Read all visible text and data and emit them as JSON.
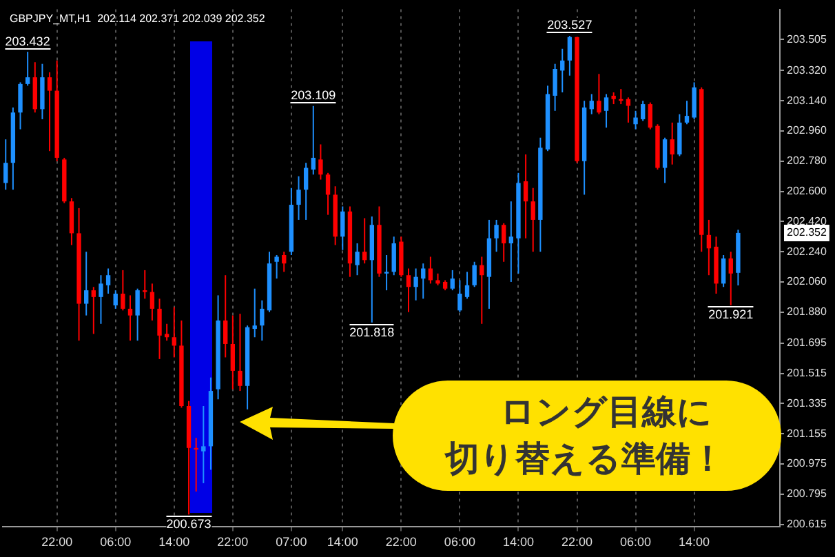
{
  "chart_data": {
    "type": "candlestick",
    "title": "GBPJPY_MT,H1  202.114 202.371 202.039 202.352",
    "categories": [
      null,
      null,
      null,
      null,
      null,
      null,
      null,
      "22:00",
      null,
      null,
      null,
      null,
      null,
      null,
      null,
      "06:00",
      null,
      null,
      null,
      null,
      null,
      null,
      null,
      "14:00",
      null,
      null,
      null,
      null,
      null,
      null,
      null,
      "22:00",
      null,
      null,
      null,
      null,
      null,
      null,
      null,
      "07:00",
      null,
      null,
      null,
      null,
      null,
      null,
      "14:00",
      null,
      null,
      null,
      null,
      null,
      null,
      null,
      "22:00",
      null,
      null,
      null,
      null,
      null,
      null,
      null,
      "06:00",
      null,
      null,
      null,
      null,
      null,
      null,
      null,
      "14:00",
      null,
      null,
      null,
      null,
      null,
      null,
      null,
      "22:00",
      null,
      null,
      null,
      null,
      null,
      null,
      null,
      "06:00",
      null,
      null,
      null,
      null,
      null,
      null,
      null,
      "14:00",
      null,
      null,
      null,
      null,
      null,
      null
    ],
    "ohlc": [
      [
        202.65,
        202.91,
        202.61,
        202.77
      ],
      [
        202.77,
        203.1,
        202.61,
        203.07
      ],
      [
        203.07,
        203.25,
        202.97,
        203.24
      ],
      [
        203.24,
        203.432,
        203.23,
        203.28
      ],
      [
        203.28,
        203.37,
        203.07,
        203.09
      ],
      [
        203.09,
        203.36,
        203.03,
        203.28
      ],
      [
        203.28,
        203.31,
        202.84,
        203.2
      ],
      [
        203.2,
        203.38,
        202.78,
        202.8
      ],
      [
        202.79,
        202.8,
        202.53,
        202.54
      ],
      [
        202.54,
        202.56,
        202.28,
        202.35
      ],
      [
        202.35,
        202.5,
        201.71,
        201.93
      ],
      [
        201.93,
        202.24,
        201.86,
        202.01
      ],
      [
        202.01,
        202.03,
        201.75,
        201.97
      ],
      [
        201.97,
        202.1,
        201.81,
        202.05
      ],
      [
        202.04,
        202.14,
        201.99,
        202.1
      ],
      [
        201.92,
        202.01,
        201.9,
        201.99
      ],
      [
        201.99,
        202.13,
        201.89,
        201.9
      ],
      [
        201.9,
        201.98,
        201.71,
        201.86
      ],
      [
        201.86,
        202.02,
        201.71,
        202.01
      ],
      [
        202.01,
        202.13,
        201.96,
        202.0
      ],
      [
        202.0,
        202.05,
        201.83,
        201.9
      ],
      [
        201.9,
        201.96,
        201.6,
        201.74
      ],
      [
        201.75,
        201.81,
        201.71,
        201.73
      ],
      [
        201.73,
        201.91,
        201.61,
        201.68
      ],
      [
        201.68,
        201.83,
        201.31,
        201.32
      ],
      [
        201.32,
        201.35,
        200.673,
        201.07
      ],
      [
        201.07,
        201.13,
        200.81,
        201.06
      ],
      [
        201.05,
        201.32,
        200.86,
        201.08
      ],
      [
        201.08,
        201.49,
        200.94,
        201.41
      ],
      [
        201.42,
        201.98,
        201.36,
        201.83
      ],
      [
        201.83,
        202.1,
        201.61,
        201.69
      ],
      [
        201.69,
        201.86,
        201.42,
        201.53
      ],
      [
        201.53,
        201.87,
        201.41,
        201.44
      ],
      [
        201.44,
        201.8,
        201.3,
        201.79
      ],
      [
        201.78,
        202.02,
        201.73,
        201.8
      ],
      [
        201.8,
        201.95,
        201.71,
        201.9
      ],
      [
        201.89,
        202.24,
        201.88,
        202.17
      ],
      [
        202.18,
        202.22,
        202.08,
        202.21
      ],
      [
        202.22,
        202.24,
        202.12,
        202.17
      ],
      [
        202.24,
        202.62,
        202.22,
        202.52
      ],
      [
        202.52,
        202.69,
        202.43,
        202.61
      ],
      [
        202.61,
        202.77,
        202.43,
        202.74
      ],
      [
        202.73,
        203.109,
        202.7,
        202.8
      ],
      [
        202.79,
        202.88,
        202.67,
        202.7
      ],
      [
        202.7,
        202.71,
        202.46,
        202.58
      ],
      [
        202.58,
        202.63,
        202.28,
        202.33
      ],
      [
        202.33,
        202.51,
        202.25,
        202.48
      ],
      [
        202.48,
        202.51,
        202.09,
        202.17
      ],
      [
        202.16,
        202.29,
        202.1,
        202.24
      ],
      [
        202.24,
        202.44,
        202.17,
        202.19
      ],
      [
        202.19,
        202.45,
        201.818,
        202.4
      ],
      [
        202.4,
        202.51,
        202.09,
        202.11
      ],
      [
        202.11,
        202.22,
        202.01,
        202.12
      ],
      [
        202.12,
        202.33,
        202.1,
        202.29
      ],
      [
        202.3,
        202.33,
        202.09,
        202.1
      ],
      [
        202.1,
        202.14,
        201.88,
        202.03
      ],
      [
        202.03,
        202.14,
        201.95,
        202.09
      ],
      [
        202.08,
        202.17,
        201.96,
        202.14
      ],
      [
        202.14,
        202.21,
        202.05,
        202.07
      ],
      [
        202.07,
        202.11,
        202.04,
        202.05
      ],
      [
        202.06,
        202.07,
        202.01,
        202.02
      ],
      [
        202.02,
        202.13,
        202.01,
        202.08
      ],
      [
        201.89,
        202.07,
        201.88,
        201.99
      ],
      [
        201.97,
        202.12,
        201.96,
        202.04
      ],
      [
        202.04,
        202.18,
        202.03,
        202.16
      ],
      [
        202.16,
        202.21,
        201.81,
        202.1
      ],
      [
        202.09,
        202.43,
        201.9,
        202.32
      ],
      [
        202.32,
        202.43,
        202.24,
        202.4
      ],
      [
        202.4,
        202.41,
        202.18,
        202.29
      ],
      [
        202.29,
        202.54,
        202.06,
        202.33
      ],
      [
        202.32,
        202.71,
        202.11,
        202.65
      ],
      [
        202.66,
        202.82,
        202.32,
        202.54
      ],
      [
        202.54,
        202.62,
        202.24,
        202.43
      ],
      [
        202.43,
        202.92,
        202.24,
        202.86
      ],
      [
        202.85,
        203.23,
        202.84,
        203.18
      ],
      [
        203.17,
        203.36,
        203.08,
        203.33
      ],
      [
        203.32,
        203.45,
        203.19,
        203.38
      ],
      [
        203.38,
        203.527,
        203.29,
        203.52
      ],
      [
        203.52,
        203.52,
        202.77,
        202.78
      ],
      [
        202.78,
        203.14,
        202.58,
        203.1
      ],
      [
        203.09,
        203.18,
        203.06,
        203.14
      ],
      [
        203.14,
        203.3,
        203.06,
        203.07
      ],
      [
        203.08,
        203.18,
        202.98,
        203.16
      ],
      [
        203.17,
        203.19,
        203.12,
        203.15
      ],
      [
        203.15,
        203.21,
        203.12,
        203.14
      ],
      [
        203.15,
        203.16,
        203.01,
        203.11
      ],
      [
        203.0,
        203.08,
        202.97,
        203.04
      ],
      [
        203.03,
        203.14,
        203.02,
        203.12
      ],
      [
        203.12,
        203.13,
        202.97,
        202.98
      ],
      [
        202.99,
        203.0,
        202.73,
        202.74
      ],
      [
        202.74,
        202.92,
        202.65,
        202.91
      ],
      [
        202.91,
        203.01,
        202.76,
        202.82
      ],
      [
        202.82,
        203.06,
        202.81,
        203.01
      ],
      [
        203.01,
        203.14,
        203.0,
        203.05
      ],
      [
        203.04,
        203.25,
        203.03,
        203.22
      ],
      [
        203.21,
        203.22,
        202.24,
        202.34
      ],
      [
        202.34,
        202.43,
        202.1,
        202.26
      ],
      [
        202.27,
        202.33,
        201.99,
        202.05
      ],
      [
        202.05,
        202.22,
        202.03,
        202.2
      ],
      [
        202.2,
        202.24,
        201.921,
        202.11
      ],
      [
        202.114,
        202.371,
        202.039,
        202.352
      ]
    ],
    "colors": [
      "#1e90ff",
      "#1e90ff",
      "#1e90ff",
      "#1e90ff",
      "#ff0000",
      "#1e90ff",
      "#ff0000",
      "#ff0000",
      "#ff0000",
      "#ff0000",
      "#ff0000",
      "#1e90ff",
      "#ff0000",
      "#1e90ff",
      "#1e90ff",
      "#1e90ff",
      "#ff0000",
      "#ff0000",
      "#1e90ff",
      "#ff0000",
      "#ff0000",
      "#ff0000",
      "#ff0000",
      "#ff0000",
      "#ff0000",
      "#ff0000",
      "#ff0000",
      "#1e90ff",
      "#1e90ff",
      "#1e90ff",
      "#ff0000",
      "#ff0000",
      "#ff0000",
      "#1e90ff",
      "#1e90ff",
      "#1e90ff",
      "#1e90ff",
      "#1e90ff",
      "#ff0000",
      "#1e90ff",
      "#1e90ff",
      "#1e90ff",
      "#1e90ff",
      "#ff0000",
      "#ff0000",
      "#ff0000",
      "#1e90ff",
      "#ff0000",
      "#1e90ff",
      "#ff0000",
      "#1e90ff",
      "#ff0000",
      "#1e90ff",
      "#1e90ff",
      "#ff0000",
      "#ff0000",
      "#1e90ff",
      "#1e90ff",
      "#ff0000",
      "#ff0000",
      "#ff0000",
      "#1e90ff",
      "#1e90ff",
      "#1e90ff",
      "#1e90ff",
      "#ff0000",
      "#1e90ff",
      "#1e90ff",
      "#ff0000",
      "#1e90ff",
      "#1e90ff",
      "#ff0000",
      "#ff0000",
      "#1e90ff",
      "#1e90ff",
      "#1e90ff",
      "#1e90ff",
      "#1e90ff",
      "#ff0000",
      "#1e90ff",
      "#1e90ff",
      "#ff0000",
      "#1e90ff",
      "#ff0000",
      "#ff0000",
      "#ff0000",
      "#1e90ff",
      "#1e90ff",
      "#ff0000",
      "#ff0000",
      "#1e90ff",
      "#ff0000",
      "#1e90ff",
      "#1e90ff",
      "#1e90ff",
      "#ff0000",
      "#ff0000",
      "#ff0000",
      "#1e90ff",
      "#ff0000",
      "#1e90ff"
    ],
    "ylim": [
      200.599,
      203.685
    ],
    "yticks": [
      {
        "value": 200.615,
        "label": "200.615"
      },
      {
        "value": 200.795,
        "label": "200.795"
      },
      {
        "value": 200.975,
        "label": "200.975"
      },
      {
        "value": 201.155,
        "label": "201.155"
      },
      {
        "value": 201.335,
        "label": "201.335"
      },
      {
        "value": 201.515,
        "label": "201.515"
      },
      {
        "value": 201.695,
        "label": "201.695"
      },
      {
        "value": 201.88,
        "label": "201.880"
      },
      {
        "value": 202.06,
        "label": "202.060"
      },
      {
        "value": 202.24,
        "label": "202.240"
      },
      {
        "value": 202.42,
        "label": "202.420"
      },
      {
        "value": 202.6,
        "label": "202.600"
      },
      {
        "value": 202.78,
        "label": "202.780"
      },
      {
        "value": 202.96,
        "label": "202.960"
      },
      {
        "value": 203.14,
        "label": "203.140"
      },
      {
        "value": 203.32,
        "label": "203.320"
      },
      {
        "value": 203.505,
        "label": "203.505"
      }
    ],
    "grid": "x",
    "annotations": [
      {
        "text": "203.432",
        "y": 203.432
      },
      {
        "text": "200.673",
        "y": 200.673
      },
      {
        "text": "203.109",
        "y": 203.109
      },
      {
        "text": "201.818",
        "y": 201.818
      },
      {
        "text": "203.527",
        "y": 203.527
      },
      {
        "text": "201.921",
        "y": 201.921
      },
      "202.352",
      "ロング目線に切り替える準備！"
    ]
  }
}
